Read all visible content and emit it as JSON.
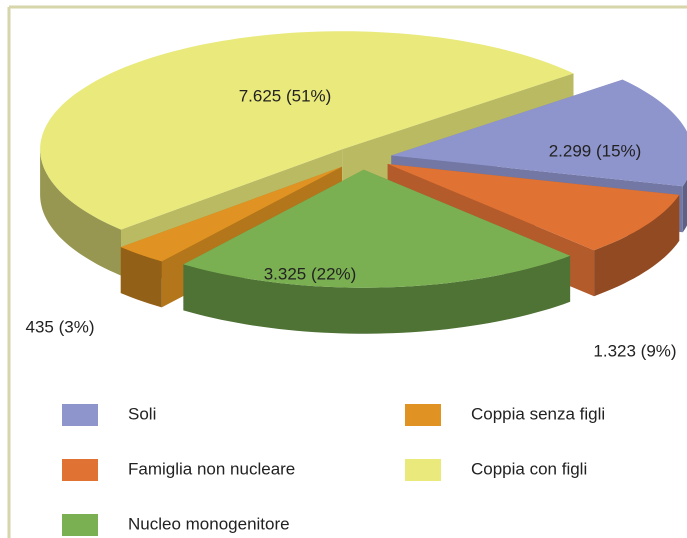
{
  "chart_data": {
    "type": "pie3d",
    "series": [
      {
        "name": "Soli",
        "color": "#8e95cc",
        "values": [
          2299
        ],
        "value_labels": [
          "2.299 (15%)"
        ]
      },
      {
        "name": "Famiglia non nucleare",
        "color": "#e07234",
        "values": [
          1323
        ],
        "value_labels": [
          "1.323 (9%)"
        ]
      },
      {
        "name": "Nucleo monogenitore",
        "color": "#7ab052",
        "values": [
          3325
        ],
        "value_labels": [
          "3.325 (22%)"
        ]
      },
      {
        "name": "Coppia senza figli",
        "color": "#e09322",
        "values": [
          435
        ],
        "value_labels": [
          "435 (3%)"
        ]
      },
      {
        "name": "Coppia con figli",
        "color": "#e9e97c",
        "values": [
          7625
        ],
        "value_labels": [
          "7.625 (51%)"
        ]
      }
    ]
  }
}
